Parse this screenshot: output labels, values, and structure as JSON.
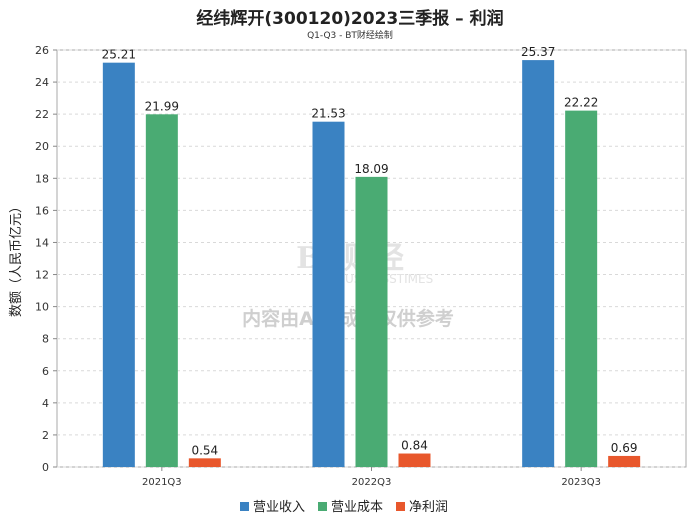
{
  "title": "经纬辉开(300120)2023三季报 – 利润",
  "subtitle": "Q1-Q3 - BT财经绘制",
  "watermark": {
    "brand": "BT财经",
    "brand_en": "BUSINESSTIMES",
    "notice": "内容由AI生成，仅供参考"
  },
  "colors": {
    "revenue": "#3a82c2",
    "cost": "#4aab73",
    "profit": "#e8572c",
    "grid": "#d9d9d9",
    "axis": "#888888"
  },
  "chart_data": {
    "type": "bar",
    "title": "经纬辉开(300120)2023三季报 – 利润",
    "xlabel": "",
    "ylabel": "数额（人民币亿元）",
    "ylim": [
      0,
      26
    ],
    "yticks": [
      0,
      2,
      4,
      6,
      8,
      10,
      12,
      14,
      16,
      18,
      20,
      22,
      24,
      26
    ],
    "categories": [
      "2021Q3",
      "2022Q3",
      "2023Q3"
    ],
    "series": [
      {
        "name": "营业收入",
        "color_key": "revenue",
        "values": [
          25.21,
          21.53,
          25.37
        ]
      },
      {
        "name": "营业成本",
        "color_key": "cost",
        "values": [
          21.99,
          18.09,
          22.22
        ]
      },
      {
        "name": "净利润",
        "color_key": "profit",
        "values": [
          0.54,
          0.84,
          0.69
        ]
      }
    ],
    "legend_position": "bottom-center",
    "grid": true
  }
}
